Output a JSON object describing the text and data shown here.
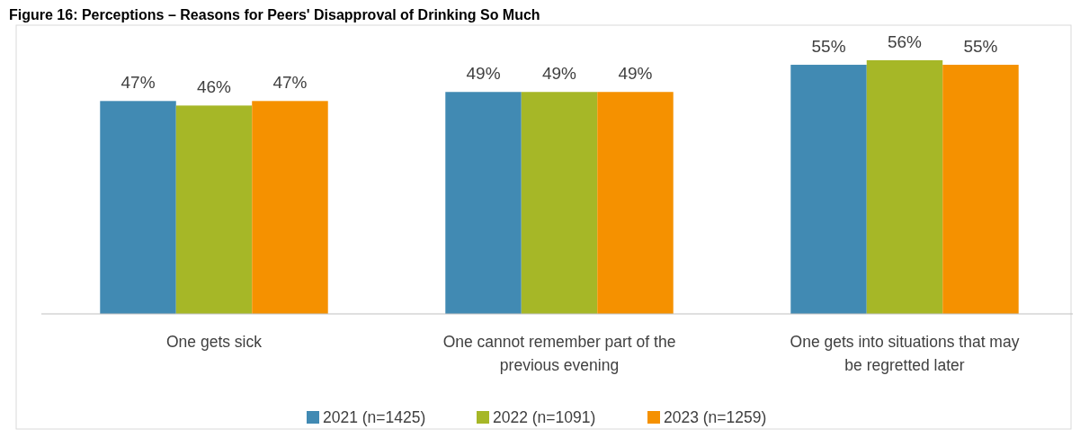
{
  "chart_data": {
    "type": "bar",
    "title": "Figure 16: Perceptions – Reasons for Peers' Disapproval of Drinking So Much",
    "categories": [
      "One gets sick",
      "One cannot remember part of the previous evening",
      "One gets into situations that may be regretted later"
    ],
    "series": [
      {
        "name": "2021 (n=1425)",
        "color": "#418ab3",
        "values": [
          47,
          49,
          55
        ],
        "value_labels": [
          "47%",
          "49%",
          "55%"
        ]
      },
      {
        "name": "2022 (n=1091)",
        "color": "#a6b727",
        "values": [
          46,
          49,
          56
        ],
        "value_labels": [
          "46%",
          "49%",
          "56%"
        ]
      },
      {
        "name": "2023 (n=1259)",
        "color": "#f59100",
        "values": [
          47,
          49,
          55
        ],
        "value_labels": [
          "47%",
          "49%",
          "55%"
        ]
      }
    ],
    "legend": "bottom",
    "grid": false
  }
}
